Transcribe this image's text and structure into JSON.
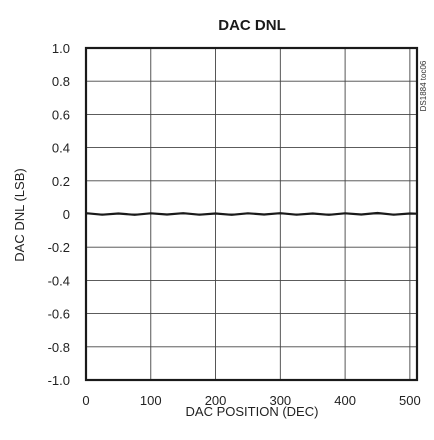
{
  "chart_data": {
    "type": "line",
    "title": "DAC DNL",
    "xlabel": "DAC POSITION (DEC)",
    "ylabel": "DAC DNL (LSB)",
    "side_label": "DS1884 toc06",
    "xlim": [
      0,
      511
    ],
    "ylim": [
      -1.0,
      1.0
    ],
    "x_ticks": [
      0,
      100,
      200,
      300,
      400,
      500
    ],
    "x_tick_labels": [
      "0",
      "100",
      "200",
      "300",
      "400",
      "500"
    ],
    "y_ticks": [
      1.0,
      0.8,
      0.6,
      0.4,
      0.2,
      0,
      -0.2,
      -0.4,
      -0.6,
      -0.8,
      -1.0
    ],
    "y_tick_labels": [
      "1.0",
      "0.8",
      "0.6",
      "0.4",
      "0.2",
      "0",
      "-0.2",
      "-0.4",
      "-0.6",
      "-0.8",
      "-1.0"
    ],
    "grid": true,
    "series": [
      {
        "color": "#1a1a1a",
        "x": [
          0,
          25,
          50,
          75,
          100,
          125,
          150,
          175,
          200,
          225,
          250,
          275,
          300,
          325,
          350,
          375,
          400,
          425,
          450,
          475,
          500,
          511
        ],
        "y": [
          0.005,
          -0.004,
          0.003,
          -0.005,
          0.004,
          -0.003,
          0.005,
          -0.004,
          0.003,
          -0.005,
          0.004,
          -0.003,
          0.005,
          -0.004,
          0.003,
          -0.005,
          0.004,
          -0.003,
          0.006,
          -0.004,
          0.003,
          0.002
        ]
      }
    ]
  }
}
